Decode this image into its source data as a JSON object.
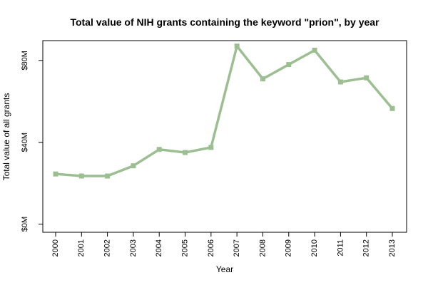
{
  "chart_data": {
    "type": "line",
    "title": "Total value of NIH grants containing the keyword \"prion\", by year",
    "xlabel": "Year",
    "ylabel": "Total value of all grants",
    "x": [
      "2000",
      "2001",
      "2002",
      "2003",
      "2004",
      "2005",
      "2006",
      "2007",
      "2008",
      "2009",
      "2010",
      "2011",
      "2012",
      "2013"
    ],
    "series": [
      {
        "values": [
          24.5,
          23.5,
          23.5,
          28.5,
          36.5,
          35.0,
          37.5,
          87.0,
          71.0,
          78.0,
          85.0,
          69.5,
          71.5,
          56.5
        ]
      }
    ],
    "yticks": [
      {
        "value": 0,
        "label": "$0M"
      },
      {
        "value": 40,
        "label": "$40M"
      },
      {
        "value": 80,
        "label": "$80M"
      }
    ],
    "ylim": [
      -4,
      89.7
    ],
    "line_color": "#9cbf92",
    "grid": false
  }
}
